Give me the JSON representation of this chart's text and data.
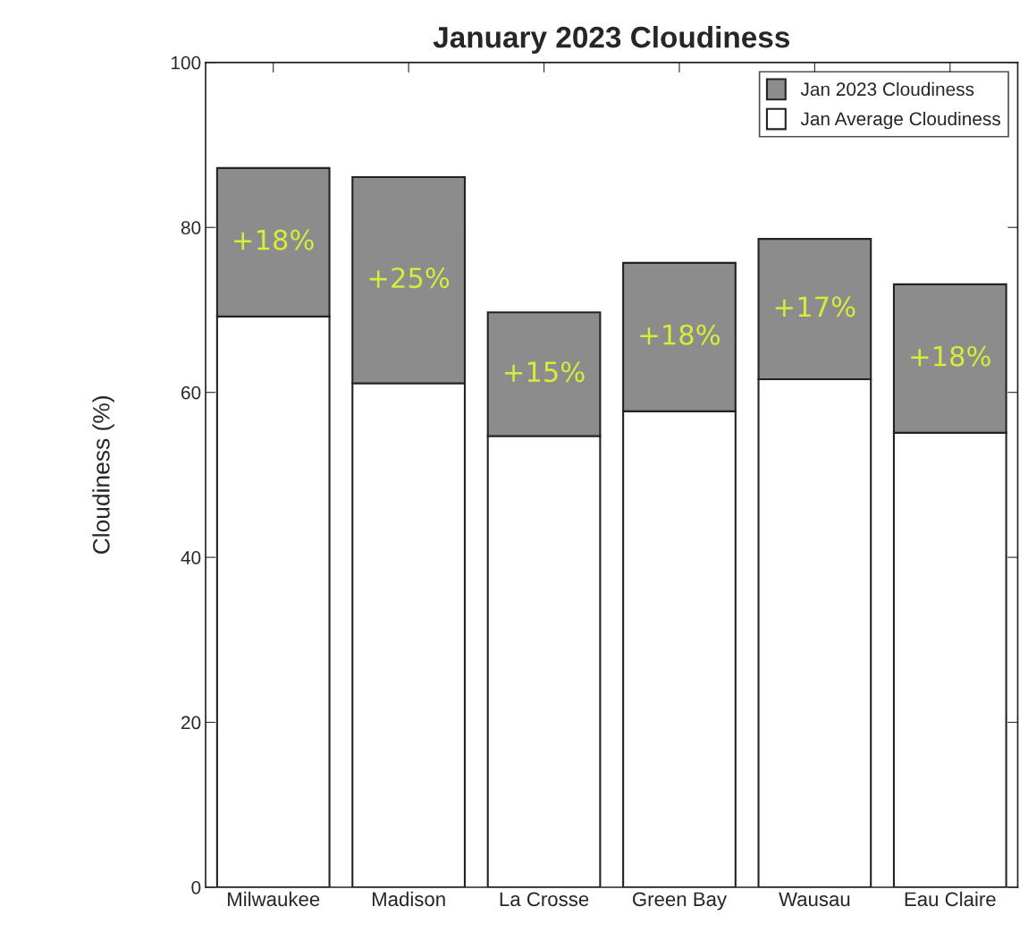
{
  "chart_data": {
    "type": "bar",
    "title": "January 2023 Cloudiness",
    "ylabel": "Cloudiness (%)",
    "categories": [
      "Milwaukee",
      "Madison",
      "La Crosse",
      "Green Bay",
      "Wausau",
      "Eau Claire"
    ],
    "stacked": true,
    "series": [
      {
        "name": "Jan Average Cloudiness",
        "color": "#ffffff",
        "values": [
          69.2,
          61.1,
          54.7,
          57.7,
          61.6,
          55.1
        ]
      },
      {
        "name": "Jan 2023 Cloudiness",
        "color": "#8c8c8c",
        "values": [
          18,
          25,
          15,
          18,
          17,
          18
        ],
        "value_labels": [
          "+18%",
          "+25%",
          "+15%",
          "+18%",
          "+17%",
          "+18%"
        ]
      }
    ],
    "ylim": [
      0,
      100
    ],
    "yticks": [
      0,
      20,
      40,
      60,
      80,
      100
    ],
    "grid": false,
    "legend": "top right"
  }
}
